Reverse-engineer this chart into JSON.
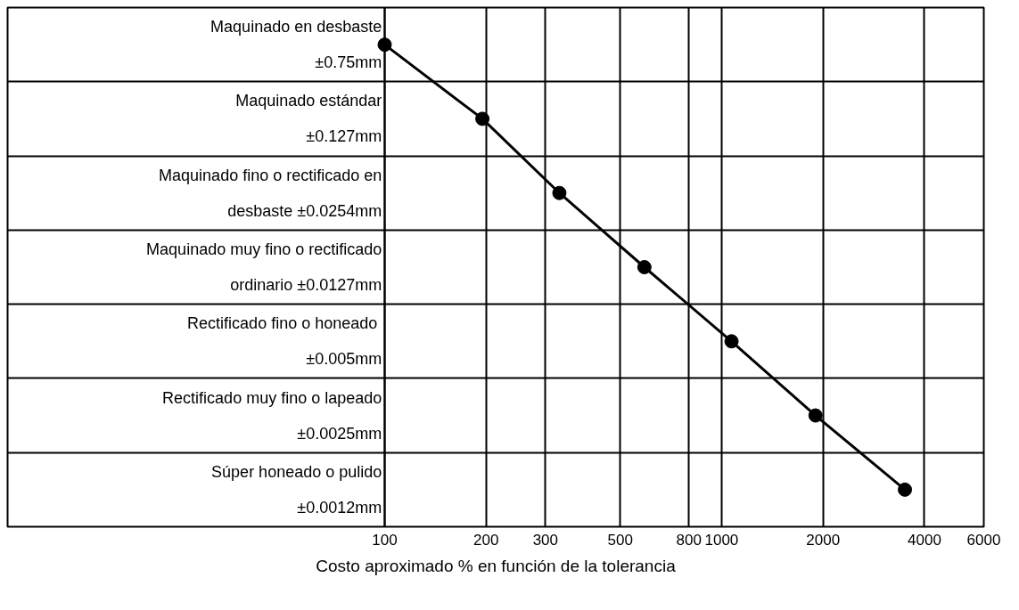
{
  "chart_data": {
    "type": "line",
    "orientation": "horizontal",
    "categories": [
      "Maquinado en desbaste\n±0.75mm",
      "Maquinado estándar\n±0.127mm",
      "Maquinado fino o rectificado en\ndesbaste ±0.0254mm",
      "Maquinado muy fino o rectificado\nordinario ±0.0127mm",
      " Rectificado fino o honeado\n±0.005mm",
      "Rectificado muy fino o lapeado\n±0.0025mm",
      "Súper honeado o pulido\n±0.0012mm"
    ],
    "values": [
      100,
      195,
      330,
      590,
      1070,
      1900,
      3500
    ],
    "color": "#000000",
    "marker": "circle",
    "line_style": "solid",
    "log": "x",
    "xlim": [
      100,
      6000
    ],
    "xticks": [
      100,
      200,
      300,
      500,
      800,
      1000,
      2000,
      4000,
      6000
    ],
    "xlabel": "Costo aproximado % en función de la tolerancia",
    "grid": true
  }
}
